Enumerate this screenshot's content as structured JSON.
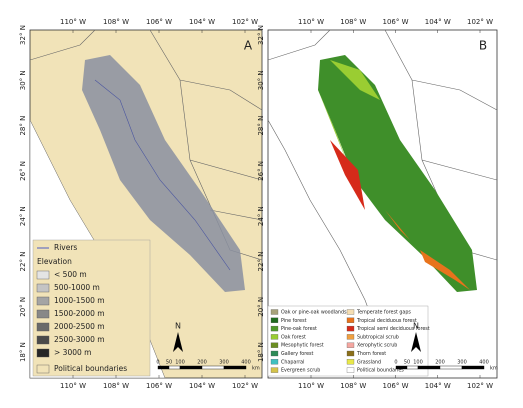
{
  "longitudes": [
    "110° W",
    "108° W",
    "106° W",
    "104° W",
    "102° W"
  ],
  "latitudes": [
    "32° N",
    "30° N",
    "28° N",
    "26° N",
    "24° N",
    "22° N",
    "20° N",
    "18° N"
  ],
  "scale_bar": {
    "ticks": [
      0,
      50,
      100,
      200,
      300,
      400
    ],
    "unit": "km"
  },
  "north": "N",
  "panels": [
    {
      "label": "A",
      "legend": {
        "rivers": "Rivers",
        "title": "Elevation",
        "classes": [
          {
            "name": "< 500 m",
            "color": "#e4e4e4"
          },
          {
            "name": "500-1000 m",
            "color": "#c4c4c4"
          },
          {
            "name": "1000-1500 m",
            "color": "#a4a4a4"
          },
          {
            "name": "1500-2000 m",
            "color": "#888888"
          },
          {
            "name": "2000-2500 m",
            "color": "#6a6a6a"
          },
          {
            "name": "2500-3000 m",
            "color": "#4a4a4a"
          },
          {
            "name": "> 3000 m",
            "color": "#262626"
          }
        ],
        "boundaries": "Political boundaries"
      }
    },
    {
      "label": "B",
      "legend": {
        "classes": [
          {
            "name": "Oak or pine-oak woodlands",
            "color": "#a7a27a"
          },
          {
            "name": "Pine forest",
            "color": "#1f6b1f"
          },
          {
            "name": "Pine-oak forest",
            "color": "#4f9a2a"
          },
          {
            "name": "Oak forest",
            "color": "#9acd32"
          },
          {
            "name": "Mesophytic forest",
            "color": "#6b8e23"
          },
          {
            "name": "Gallery forest",
            "color": "#2e8b57"
          },
          {
            "name": "Chaparral",
            "color": "#40c0c0"
          },
          {
            "name": "Evergreen scrub",
            "color": "#d4c34a"
          },
          {
            "name": "Temperate forest gaps",
            "color": "#f5deb3"
          },
          {
            "name": "Tropical deciduous forest",
            "color": "#e8731c"
          },
          {
            "name": "Tropical semi deciduous forest",
            "color": "#d62a1a"
          },
          {
            "name": "Subtropical scrub",
            "color": "#f0a040"
          },
          {
            "name": "Xerophytic scrub",
            "color": "#f4a6a0"
          },
          {
            "name": "Thorn forest",
            "color": "#8b6f1a"
          },
          {
            "name": "Grassland",
            "color": "#e8e84a"
          },
          {
            "name": "Political boundaries",
            "color": "#ffffff"
          }
        ]
      }
    }
  ]
}
